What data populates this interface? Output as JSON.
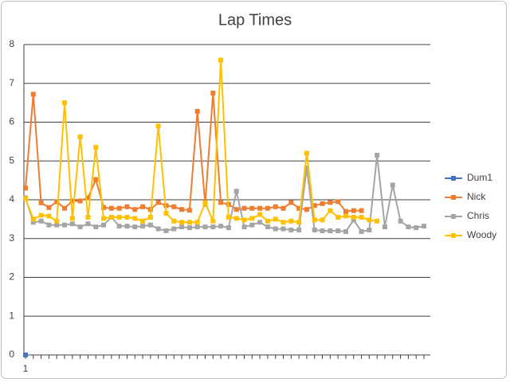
{
  "chart_data": {
    "type": "line",
    "title": "Lap Times",
    "categories": [
      "1",
      null,
      null,
      null,
      null,
      null,
      null,
      null,
      null,
      null,
      null,
      null,
      null,
      null,
      null,
      null,
      null,
      null,
      null,
      null,
      null,
      null,
      null,
      null,
      null,
      null,
      null,
      null,
      null,
      null,
      null,
      null,
      null,
      null,
      null,
      null,
      null,
      null,
      null,
      null,
      null,
      null,
      null,
      null,
      null,
      null,
      null,
      null,
      null,
      null,
      null,
      null
    ],
    "series": [
      {
        "name": "Dum1",
        "color": "#4472c4",
        "values": [
          0,
          null,
          null,
          null,
          null,
          null,
          null,
          null,
          null,
          null,
          null,
          null,
          null,
          null,
          null,
          null,
          null,
          null,
          null,
          null,
          null,
          null,
          null,
          null,
          null,
          null,
          null,
          null,
          null,
          null,
          null,
          null,
          null,
          null,
          null,
          null,
          null,
          null,
          null,
          null,
          null,
          null,
          null,
          null,
          null,
          null,
          null,
          null,
          null,
          null,
          null,
          null
        ]
      },
      {
        "name": "Nick",
        "color": "#ed7d31",
        "values": [
          4.3,
          6.72,
          3.92,
          3.8,
          3.95,
          3.78,
          3.97,
          3.97,
          4.05,
          4.52,
          3.8,
          3.78,
          3.78,
          3.82,
          3.75,
          3.82,
          3.75,
          3.93,
          3.85,
          3.82,
          3.75,
          3.73,
          6.28,
          3.88,
          6.75,
          3.93,
          3.88,
          3.75,
          3.78,
          3.78,
          3.78,
          3.78,
          3.82,
          3.78,
          3.93,
          3.78,
          3.75,
          3.85,
          3.9,
          3.93,
          3.95,
          3.7,
          3.72,
          3.72,
          null,
          null,
          null,
          null,
          null,
          null,
          null,
          null
        ]
      },
      {
        "name": "Chris",
        "color": "#a5a5a5",
        "values": [
          4.05,
          3.42,
          3.45,
          3.35,
          3.35,
          3.35,
          3.38,
          3.3,
          3.38,
          3.3,
          3.35,
          3.55,
          3.32,
          3.32,
          3.3,
          3.32,
          3.35,
          3.25,
          3.2,
          3.25,
          3.3,
          3.28,
          3.3,
          3.3,
          3.3,
          3.32,
          3.28,
          4.22,
          3.3,
          3.35,
          3.42,
          3.3,
          3.25,
          3.25,
          3.22,
          3.22,
          4.82,
          3.22,
          3.2,
          3.2,
          3.2,
          3.18,
          3.48,
          3.18,
          3.22,
          5.15,
          3.3,
          4.38,
          3.45,
          3.3,
          3.28,
          3.32
        ]
      },
      {
        "name": "Woody",
        "color": "#ffc000",
        "values": [
          4.03,
          3.5,
          3.6,
          3.58,
          3.45,
          6.5,
          3.52,
          5.62,
          3.55,
          5.35,
          3.52,
          3.55,
          3.55,
          3.55,
          3.52,
          3.45,
          3.55,
          5.9,
          3.65,
          3.45,
          3.42,
          3.42,
          3.42,
          3.92,
          3.45,
          7.6,
          3.55,
          3.52,
          3.48,
          3.52,
          3.62,
          3.45,
          3.5,
          3.42,
          3.45,
          3.42,
          5.2,
          3.48,
          3.48,
          3.72,
          3.55,
          3.58,
          3.55,
          3.55,
          3.48,
          3.45,
          null,
          null,
          null,
          null,
          null,
          null
        ]
      }
    ],
    "ylim": [
      0,
      8
    ],
    "yticks": [
      0,
      1,
      2,
      3,
      4,
      5,
      6,
      7,
      8
    ],
    "grid": true,
    "legend": "right"
  }
}
